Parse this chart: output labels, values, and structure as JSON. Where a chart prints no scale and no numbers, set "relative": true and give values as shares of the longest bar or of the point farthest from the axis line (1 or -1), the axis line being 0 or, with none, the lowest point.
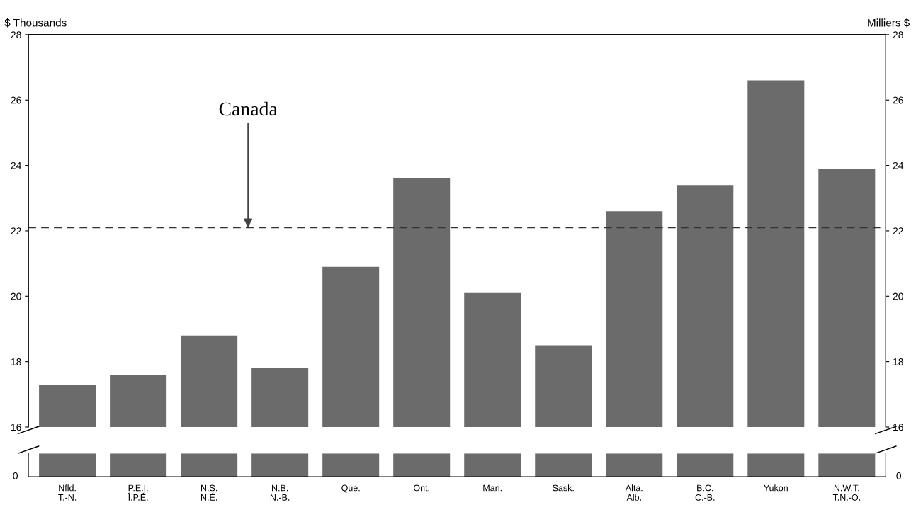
{
  "chart_data": [
    {
      "type": "bar",
      "categories": [
        null,
        null,
        null,
        null,
        null,
        null,
        null,
        null,
        null,
        null,
        null,
        null
      ],
      "values": [
        17.3,
        17.6,
        18.8,
        17.8,
        20.9,
        23.6,
        20.1,
        18.5,
        22.6,
        23.4,
        26.6,
        23.9
      ],
      "color": "#6b6b6b",
      "ylabel": "$ Thousands",
      "y2label": "Milliers $",
      "ylim": [
        16,
        28
      ],
      "yticks": [
        16,
        18,
        20,
        22,
        24,
        26,
        28
      ],
      "y2lim": [
        16,
        28
      ],
      "y2ticks": [
        16,
        18,
        20,
        22,
        24,
        26,
        28
      ],
      "tick_labels": "y",
      "ref_lines": [
        {
          "axis": "y",
          "value": 22.1,
          "color": "#333333",
          "line_style": "dashed"
        }
      ],
      "annotations": [
        {
          "text": "Canada",
          "y": 22.1
        }
      ],
      "grid": false
    },
    {
      "type": "bar",
      "relative": true,
      "categories": [
        "Nfld.\nT.-N.",
        "P.E.I.\nÎ.P.É.",
        "N.S.\nN.É.",
        "N.B.\nN.-B.",
        "Que.",
        "Ont.",
        "Man.",
        "Sask.",
        "Alta.\nAlb.",
        "B.C.\nC.-B.",
        "Yukon",
        "N.W.T.\nT.N.-O."
      ],
      "values": [
        1,
        1,
        1,
        1,
        1,
        1,
        1,
        1,
        1,
        1,
        1,
        1
      ],
      "color": "#6b6b6b",
      "annotations": [
        "0",
        "0"
      ],
      "grid": false
    }
  ]
}
